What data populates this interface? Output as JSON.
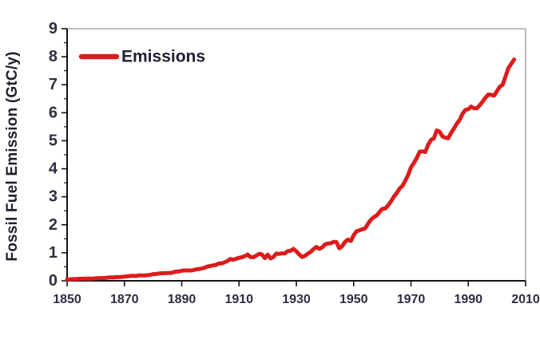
{
  "colors": {
    "series_red": "#dc1c1c",
    "tick_label": "#2e2e42",
    "axis_line": "#141414",
    "plot_border": "#a6a6a6",
    "legend_text": "#1f1f33",
    "axis_title_text": "#20202c",
    "background": "#ffffff"
  },
  "chart_data": {
    "type": "line",
    "title": "",
    "xlabel": "",
    "ylabel": "Fossil Fuel Emission (GtC/y)",
    "xlim": [
      1850,
      2010
    ],
    "ylim": [
      0,
      9
    ],
    "x_major_ticks": [
      1850,
      1870,
      1890,
      1910,
      1930,
      1950,
      1970,
      1990,
      2010
    ],
    "y_major_ticks": [
      0,
      1,
      2,
      3,
      4,
      5,
      6,
      7,
      8,
      9
    ],
    "y_minor_step": 0.5,
    "grid": false,
    "legend": {
      "position": "top-left-inside",
      "entries": [
        {
          "label": "Emissions",
          "color": "#dc1c1c"
        }
      ]
    },
    "series": [
      {
        "name": "Emissions",
        "color": "#dc1c1c",
        "units": "GtC/y",
        "points": [
          [
            1850,
            0.05
          ],
          [
            1851,
            0.05
          ],
          [
            1852,
            0.06
          ],
          [
            1853,
            0.06
          ],
          [
            1854,
            0.07
          ],
          [
            1855,
            0.07
          ],
          [
            1856,
            0.08
          ],
          [
            1857,
            0.08
          ],
          [
            1858,
            0.08
          ],
          [
            1859,
            0.08
          ],
          [
            1860,
            0.09
          ],
          [
            1861,
            0.09
          ],
          [
            1862,
            0.1
          ],
          [
            1863,
            0.1
          ],
          [
            1864,
            0.11
          ],
          [
            1865,
            0.12
          ],
          [
            1866,
            0.12
          ],
          [
            1867,
            0.13
          ],
          [
            1868,
            0.13
          ],
          [
            1869,
            0.14
          ],
          [
            1870,
            0.15
          ],
          [
            1871,
            0.16
          ],
          [
            1872,
            0.17
          ],
          [
            1873,
            0.18
          ],
          [
            1874,
            0.17
          ],
          [
            1875,
            0.19
          ],
          [
            1876,
            0.19
          ],
          [
            1877,
            0.19
          ],
          [
            1878,
            0.2
          ],
          [
            1879,
            0.21
          ],
          [
            1880,
            0.24
          ],
          [
            1881,
            0.24
          ],
          [
            1882,
            0.26
          ],
          [
            1883,
            0.27
          ],
          [
            1884,
            0.27
          ],
          [
            1885,
            0.28
          ],
          [
            1886,
            0.28
          ],
          [
            1887,
            0.3
          ],
          [
            1888,
            0.33
          ],
          [
            1889,
            0.33
          ],
          [
            1890,
            0.36
          ],
          [
            1891,
            0.37
          ],
          [
            1892,
            0.37
          ],
          [
            1893,
            0.37
          ],
          [
            1894,
            0.38
          ],
          [
            1895,
            0.41
          ],
          [
            1896,
            0.42
          ],
          [
            1897,
            0.44
          ],
          [
            1898,
            0.47
          ],
          [
            1899,
            0.51
          ],
          [
            1900,
            0.53
          ],
          [
            1901,
            0.55
          ],
          [
            1902,
            0.57
          ],
          [
            1903,
            0.62
          ],
          [
            1904,
            0.62
          ],
          [
            1905,
            0.66
          ],
          [
            1906,
            0.71
          ],
          [
            1907,
            0.78
          ],
          [
            1908,
            0.75
          ],
          [
            1909,
            0.79
          ],
          [
            1910,
            0.82
          ],
          [
            1911,
            0.84
          ],
          [
            1912,
            0.88
          ],
          [
            1913,
            0.94
          ],
          [
            1914,
            0.85
          ],
          [
            1915,
            0.84
          ],
          [
            1916,
            0.9
          ],
          [
            1917,
            0.96
          ],
          [
            1918,
            0.94
          ],
          [
            1919,
            0.81
          ],
          [
            1920,
            0.93
          ],
          [
            1921,
            0.8
          ],
          [
            1922,
            0.85
          ],
          [
            1923,
            0.97
          ],
          [
            1924,
            0.96
          ],
          [
            1925,
            0.98
          ],
          [
            1926,
            0.98
          ],
          [
            1927,
            1.06
          ],
          [
            1928,
            1.07
          ],
          [
            1929,
            1.14
          ],
          [
            1930,
            1.05
          ],
          [
            1931,
            0.94
          ],
          [
            1932,
            0.85
          ],
          [
            1933,
            0.89
          ],
          [
            1934,
            0.97
          ],
          [
            1935,
            1.03
          ],
          [
            1936,
            1.13
          ],
          [
            1937,
            1.21
          ],
          [
            1938,
            1.14
          ],
          [
            1939,
            1.19
          ],
          [
            1940,
            1.3
          ],
          [
            1941,
            1.33
          ],
          [
            1942,
            1.34
          ],
          [
            1943,
            1.39
          ],
          [
            1944,
            1.38
          ],
          [
            1945,
            1.16
          ],
          [
            1946,
            1.24
          ],
          [
            1947,
            1.39
          ],
          [
            1948,
            1.47
          ],
          [
            1949,
            1.42
          ],
          [
            1950,
            1.63
          ],
          [
            1951,
            1.77
          ],
          [
            1952,
            1.8
          ],
          [
            1953,
            1.84
          ],
          [
            1954,
            1.87
          ],
          [
            1955,
            2.04
          ],
          [
            1956,
            2.18
          ],
          [
            1957,
            2.27
          ],
          [
            1958,
            2.33
          ],
          [
            1959,
            2.45
          ],
          [
            1960,
            2.57
          ],
          [
            1961,
            2.58
          ],
          [
            1962,
            2.69
          ],
          [
            1963,
            2.83
          ],
          [
            1964,
            3.0
          ],
          [
            1965,
            3.13
          ],
          [
            1966,
            3.29
          ],
          [
            1967,
            3.39
          ],
          [
            1968,
            3.57
          ],
          [
            1969,
            3.78
          ],
          [
            1970,
            4.05
          ],
          [
            1971,
            4.21
          ],
          [
            1972,
            4.38
          ],
          [
            1973,
            4.61
          ],
          [
            1974,
            4.62
          ],
          [
            1975,
            4.6
          ],
          [
            1976,
            4.86
          ],
          [
            1977,
            5.03
          ],
          [
            1978,
            5.09
          ],
          [
            1979,
            5.37
          ],
          [
            1980,
            5.32
          ],
          [
            1981,
            5.15
          ],
          [
            1982,
            5.11
          ],
          [
            1983,
            5.09
          ],
          [
            1984,
            5.28
          ],
          [
            1985,
            5.44
          ],
          [
            1986,
            5.61
          ],
          [
            1987,
            5.75
          ],
          [
            1988,
            5.97
          ],
          [
            1989,
            6.1
          ],
          [
            1990,
            6.13
          ],
          [
            1991,
            6.22
          ],
          [
            1992,
            6.16
          ],
          [
            1993,
            6.16
          ],
          [
            1994,
            6.27
          ],
          [
            1995,
            6.4
          ],
          [
            1996,
            6.54
          ],
          [
            1997,
            6.65
          ],
          [
            1998,
            6.64
          ],
          [
            1999,
            6.61
          ],
          [
            2000,
            6.77
          ],
          [
            2001,
            6.93
          ],
          [
            2002,
            7.0
          ],
          [
            2003,
            7.3
          ],
          [
            2004,
            7.6
          ],
          [
            2005,
            7.75
          ],
          [
            2006,
            7.9
          ]
        ]
      }
    ]
  }
}
